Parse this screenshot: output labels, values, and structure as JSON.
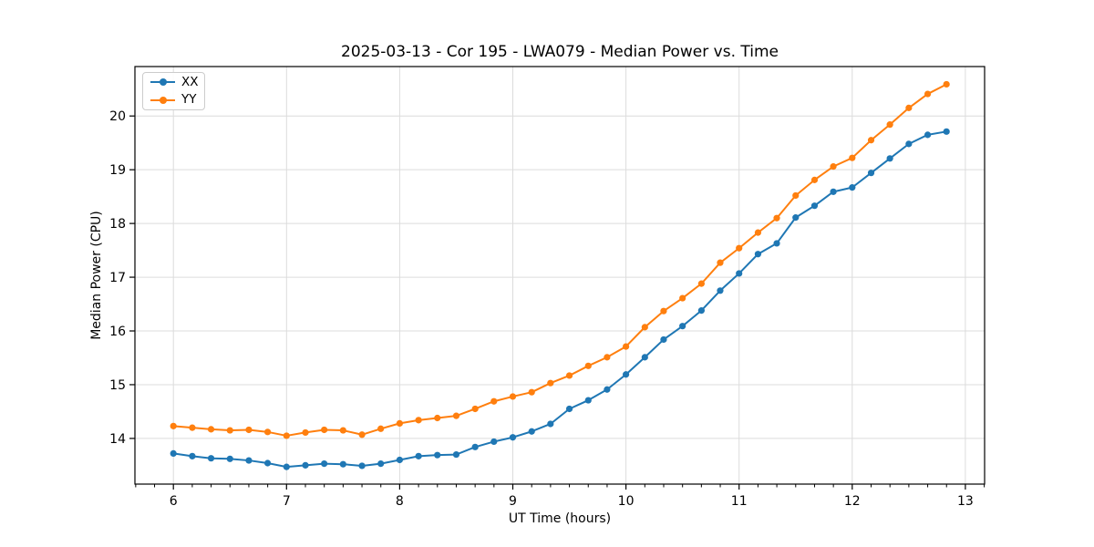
{
  "chart_data": {
    "type": "line",
    "title": "2025-03-13 - Cor 195 - LWA079 - Median Power vs. Time",
    "xlabel": "UT Time (hours)",
    "ylabel": "Median Power (CPU)",
    "xlim": [
      5.66,
      13.17
    ],
    "ylim": [
      13.15,
      20.92
    ],
    "x_ticks": [
      6,
      7,
      8,
      9,
      10,
      11,
      12,
      13
    ],
    "y_ticks": [
      14,
      15,
      16,
      17,
      18,
      19,
      20
    ],
    "x_minor_tick_step": 0.16667,
    "grid": true,
    "legend_position": "upper left",
    "x": [
      6.0,
      6.167,
      6.333,
      6.5,
      6.667,
      6.833,
      7.0,
      7.167,
      7.333,
      7.5,
      7.667,
      7.833,
      8.0,
      8.167,
      8.333,
      8.5,
      8.667,
      8.833,
      9.0,
      9.167,
      9.333,
      9.5,
      9.667,
      9.833,
      10.0,
      10.167,
      10.333,
      10.5,
      10.667,
      10.833,
      11.0,
      11.167,
      11.333,
      11.5,
      11.667,
      11.833,
      12.0,
      12.167,
      12.333,
      12.5,
      12.667,
      12.833
    ],
    "series": [
      {
        "name": "XX",
        "color": "#1f77b4",
        "values": [
          13.72,
          13.67,
          13.63,
          13.62,
          13.59,
          13.54,
          13.47,
          13.5,
          13.53,
          13.52,
          13.49,
          13.53,
          13.6,
          13.67,
          13.69,
          13.7,
          13.84,
          13.94,
          14.02,
          14.13,
          14.27,
          14.55,
          14.71,
          14.91,
          15.19,
          15.51,
          15.84,
          16.09,
          16.38,
          16.75,
          17.07,
          17.43,
          17.63,
          18.11,
          18.33,
          18.59,
          18.67,
          18.94,
          19.21,
          19.48,
          19.65,
          19.71
        ]
      },
      {
        "name": "YY",
        "color": "#ff7f0e",
        "values": [
          14.23,
          14.2,
          14.17,
          14.15,
          14.16,
          14.12,
          14.05,
          14.11,
          14.16,
          14.15,
          14.07,
          14.18,
          14.28,
          14.34,
          14.38,
          14.42,
          14.55,
          14.69,
          14.78,
          14.86,
          15.03,
          15.17,
          15.35,
          15.51,
          15.71,
          16.07,
          16.37,
          16.61,
          16.88,
          17.27,
          17.54,
          17.83,
          18.1,
          18.52,
          18.81,
          19.06,
          19.22,
          19.55,
          19.84,
          20.15,
          20.41,
          20.59
        ]
      }
    ],
    "colors": {
      "grid": "#dcdcdc",
      "spine": "#000000",
      "tick": "#000000",
      "text": "#000000"
    }
  }
}
